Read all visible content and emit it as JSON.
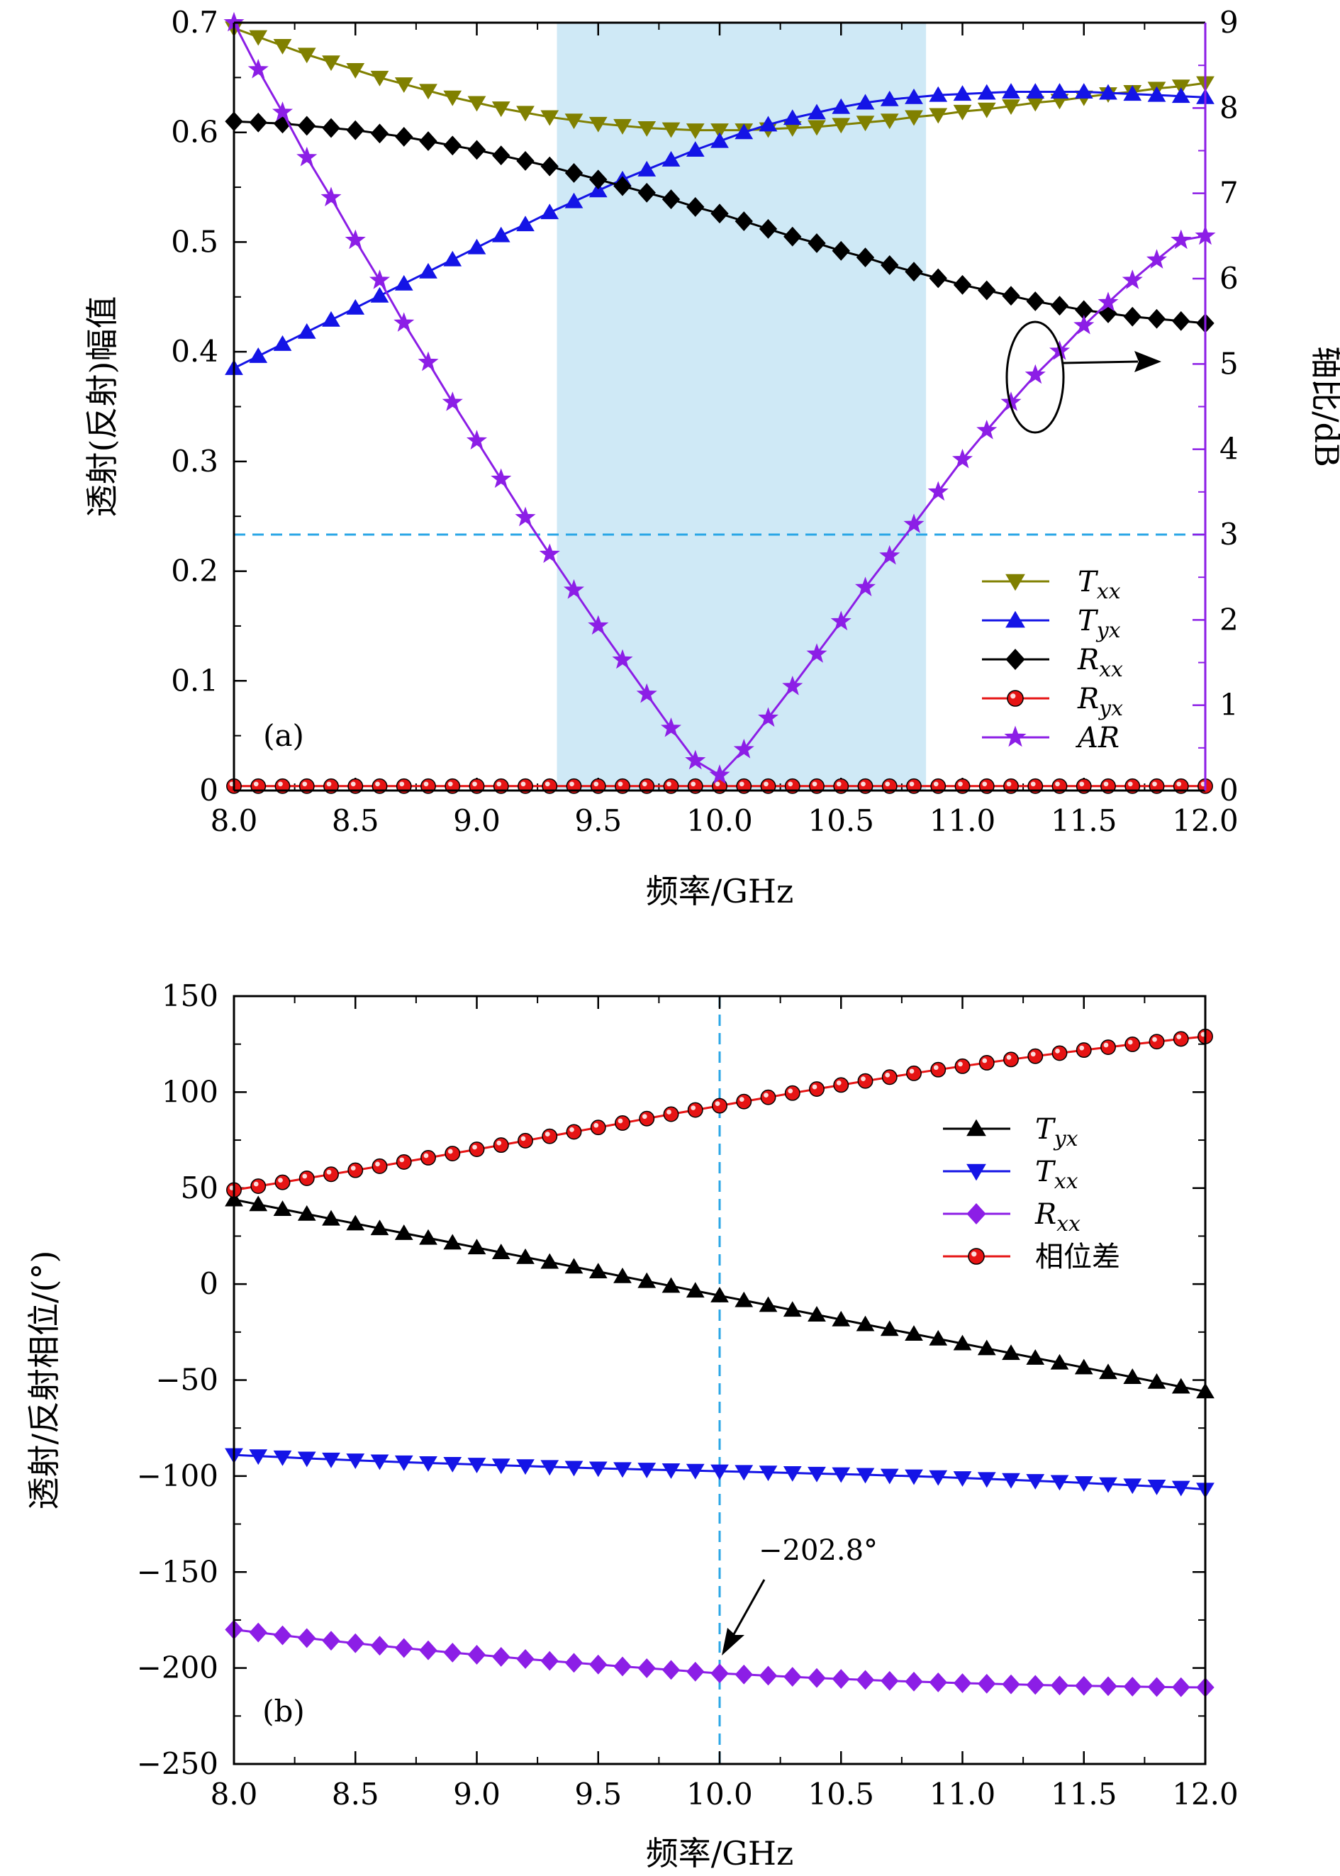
{
  "colors": {
    "olive": "#808000",
    "blue": "#1414e6",
    "black": "#000000",
    "red": "#e61414",
    "purple": "#8c1ee6",
    "band": "#cfe9f6",
    "dash": "#2aa6e6"
  },
  "chart_data": [
    {
      "type": "line",
      "panel_label": "(a)",
      "xlabel": "频率/GHz",
      "ylabel": "透射(反射)幅值",
      "y2label": "轴比/dB",
      "xlim": [
        8.0,
        12.0
      ],
      "ylim": [
        0,
        0.7
      ],
      "y2lim": [
        0,
        9
      ],
      "xticks": [
        "8.0",
        "8.5",
        "9.0",
        "9.5",
        "10.0",
        "10.5",
        "11.0",
        "11.5",
        "12.0"
      ],
      "yticks": [
        "0",
        "0.1",
        "0.2",
        "0.3",
        "0.4",
        "0.5",
        "0.6",
        "0.7"
      ],
      "y2ticks": [
        "0",
        "1",
        "2",
        "3",
        "4",
        "5",
        "6",
        "7",
        "8",
        "9"
      ],
      "shaded_band_x": [
        9.33,
        10.85
      ],
      "ref_line_y2": 3,
      "legend_position": "bottom-right",
      "series": [
        {
          "name": "T",
          "sub": "xx",
          "axis": "left",
          "marker": "tri-down",
          "color": "olive",
          "x": [
            8.0,
            8.1,
            8.2,
            8.3,
            8.4,
            8.5,
            8.6,
            8.7,
            8.8,
            8.9,
            9.0,
            9.1,
            9.2,
            9.3,
            9.4,
            9.5,
            9.6,
            9.7,
            9.8,
            9.9,
            10.0,
            10.1,
            10.2,
            10.3,
            10.4,
            10.5,
            10.6,
            10.7,
            10.8,
            10.9,
            11.0,
            11.1,
            11.2,
            11.3,
            11.4,
            11.5,
            11.6,
            11.7,
            11.8,
            11.9,
            12.0
          ],
          "y": [
            0.695,
            0.687,
            0.679,
            0.671,
            0.664,
            0.657,
            0.65,
            0.644,
            0.638,
            0.632,
            0.627,
            0.622,
            0.618,
            0.614,
            0.611,
            0.608,
            0.606,
            0.604,
            0.603,
            0.602,
            0.602,
            0.602,
            0.603,
            0.604,
            0.605,
            0.607,
            0.609,
            0.611,
            0.614,
            0.616,
            0.619,
            0.621,
            0.624,
            0.627,
            0.629,
            0.632,
            0.635,
            0.637,
            0.64,
            0.642,
            0.645
          ]
        },
        {
          "name": "T",
          "sub": "yx",
          "axis": "left",
          "marker": "tri-up",
          "color": "blue",
          "x": [
            8.0,
            8.1,
            8.2,
            8.3,
            8.4,
            8.5,
            8.6,
            8.7,
            8.8,
            8.9,
            9.0,
            9.1,
            9.2,
            9.3,
            9.4,
            9.5,
            9.6,
            9.7,
            9.8,
            9.9,
            10.0,
            10.1,
            10.2,
            10.3,
            10.4,
            10.5,
            10.6,
            10.7,
            10.8,
            10.9,
            11.0,
            11.1,
            11.2,
            11.3,
            11.4,
            11.5,
            11.6,
            11.7,
            11.8,
            11.9,
            12.0
          ],
          "y": [
            0.385,
            0.396,
            0.407,
            0.418,
            0.429,
            0.44,
            0.451,
            0.462,
            0.473,
            0.484,
            0.495,
            0.506,
            0.516,
            0.527,
            0.537,
            0.547,
            0.557,
            0.566,
            0.575,
            0.584,
            0.592,
            0.6,
            0.607,
            0.613,
            0.618,
            0.623,
            0.627,
            0.63,
            0.632,
            0.634,
            0.635,
            0.636,
            0.637,
            0.637,
            0.637,
            0.637,
            0.636,
            0.635,
            0.634,
            0.633,
            0.632
          ]
        },
        {
          "name": "R",
          "sub": "xx",
          "axis": "left",
          "marker": "diamond",
          "color": "black",
          "x": [
            8.0,
            8.1,
            8.2,
            8.3,
            8.4,
            8.5,
            8.6,
            8.7,
            8.8,
            8.9,
            9.0,
            9.1,
            9.2,
            9.3,
            9.4,
            9.5,
            9.6,
            9.7,
            9.8,
            9.9,
            10.0,
            10.1,
            10.2,
            10.3,
            10.4,
            10.5,
            10.6,
            10.7,
            10.8,
            10.9,
            11.0,
            11.1,
            11.2,
            11.3,
            11.4,
            11.5,
            11.6,
            11.7,
            11.8,
            11.9,
            12.0
          ],
          "y": [
            0.61,
            0.609,
            0.608,
            0.606,
            0.604,
            0.602,
            0.599,
            0.596,
            0.592,
            0.588,
            0.584,
            0.579,
            0.574,
            0.569,
            0.563,
            0.557,
            0.551,
            0.545,
            0.539,
            0.532,
            0.526,
            0.519,
            0.512,
            0.505,
            0.499,
            0.492,
            0.486,
            0.479,
            0.473,
            0.467,
            0.461,
            0.456,
            0.451,
            0.446,
            0.442,
            0.438,
            0.435,
            0.432,
            0.43,
            0.428,
            0.426
          ]
        },
        {
          "name": "R",
          "sub": "yx",
          "axis": "left",
          "marker": "circle",
          "color": "red",
          "x": [
            8.0,
            8.1,
            8.2,
            8.3,
            8.4,
            8.5,
            8.6,
            8.7,
            8.8,
            8.9,
            9.0,
            9.1,
            9.2,
            9.3,
            9.4,
            9.5,
            9.6,
            9.7,
            9.8,
            9.9,
            10.0,
            10.1,
            10.2,
            10.3,
            10.4,
            10.5,
            10.6,
            10.7,
            10.8,
            10.9,
            11.0,
            11.1,
            11.2,
            11.3,
            11.4,
            11.5,
            11.6,
            11.7,
            11.8,
            11.9,
            12.0
          ],
          "y": [
            0.004,
            0.004,
            0.004,
            0.004,
            0.004,
            0.004,
            0.004,
            0.004,
            0.004,
            0.004,
            0.004,
            0.004,
            0.004,
            0.004,
            0.004,
            0.004,
            0.004,
            0.004,
            0.004,
            0.004,
            0.004,
            0.004,
            0.004,
            0.004,
            0.004,
            0.004,
            0.004,
            0.004,
            0.004,
            0.004,
            0.004,
            0.004,
            0.004,
            0.004,
            0.004,
            0.004,
            0.004,
            0.004,
            0.004,
            0.004,
            0.004
          ]
        },
        {
          "name": "AR",
          "sub": "",
          "axis": "right",
          "marker": "star",
          "color": "purple",
          "x": [
            8.0,
            8.1,
            8.2,
            8.3,
            8.4,
            8.5,
            8.6,
            8.7,
            8.8,
            8.9,
            9.0,
            9.1,
            9.2,
            9.3,
            9.4,
            9.5,
            9.6,
            9.7,
            9.8,
            9.9,
            10.0,
            10.1,
            10.2,
            10.3,
            10.4,
            10.5,
            10.6,
            10.7,
            10.8,
            10.9,
            11.0,
            11.1,
            11.2,
            11.3,
            11.4,
            11.5,
            11.6,
            11.7,
            11.8,
            11.9,
            12.0
          ],
          "y": [
            9.0,
            8.45,
            7.95,
            7.42,
            6.95,
            6.45,
            5.98,
            5.48,
            5.02,
            4.55,
            4.1,
            3.65,
            3.2,
            2.77,
            2.35,
            1.93,
            1.53,
            1.13,
            0.73,
            0.35,
            0.18,
            0.48,
            0.85,
            1.22,
            1.6,
            1.98,
            2.38,
            2.75,
            3.12,
            3.5,
            3.88,
            4.22,
            4.55,
            4.87,
            5.15,
            5.45,
            5.72,
            5.98,
            6.22,
            6.45,
            6.5
          ]
        }
      ]
    },
    {
      "type": "line",
      "panel_label": "(b)",
      "xlabel": "频率/GHz",
      "ylabel": "透射/反射相位/(°)",
      "xlim": [
        8.0,
        12.0
      ],
      "ylim": [
        -250,
        150
      ],
      "xticks": [
        "8.0",
        "8.5",
        "9.0",
        "9.5",
        "10.0",
        "10.5",
        "11.0",
        "11.5",
        "12.0"
      ],
      "yticks": [
        "−250",
        "−200",
        "−150",
        "−100",
        "−50",
        "0",
        "50",
        "100",
        "150"
      ],
      "ref_line_x": 10.0,
      "annotation": {
        "text": "−202.8°",
        "x": 10.0,
        "y": -202.8
      },
      "legend_position": "top-right",
      "series": [
        {
          "name": "T",
          "sub": "yx",
          "marker": "tri-up",
          "color": "black",
          "x": [
            8.0,
            8.1,
            8.2,
            8.3,
            8.4,
            8.5,
            8.6,
            8.7,
            8.8,
            8.9,
            9.0,
            9.1,
            9.2,
            9.3,
            9.4,
            9.5,
            9.6,
            9.7,
            9.8,
            9.9,
            10.0,
            10.1,
            10.2,
            10.3,
            10.4,
            10.5,
            10.6,
            10.7,
            10.8,
            10.9,
            11.0,
            11.1,
            11.2,
            11.3,
            11.4,
            11.5,
            11.6,
            11.7,
            11.8,
            11.9,
            12.0
          ],
          "y": [
            44,
            41.5,
            39,
            36.5,
            34,
            31.5,
            29,
            26.5,
            24,
            21.5,
            19,
            16.5,
            14,
            11.5,
            9,
            6.5,
            4,
            1.5,
            -1,
            -3.5,
            -6,
            -8.5,
            -11,
            -13.5,
            -16,
            -18.5,
            -21,
            -23.5,
            -26,
            -28.5,
            -31,
            -33.5,
            -36,
            -38.5,
            -41,
            -43.5,
            -46,
            -48.5,
            -51,
            -53.5,
            -56
          ]
        },
        {
          "name": "T",
          "sub": "xx",
          "marker": "tri-down",
          "color": "blue",
          "x": [
            8.0,
            8.1,
            8.2,
            8.3,
            8.4,
            8.5,
            8.6,
            8.7,
            8.8,
            8.9,
            9.0,
            9.1,
            9.2,
            9.3,
            9.4,
            9.5,
            9.6,
            9.7,
            9.8,
            9.9,
            10.0,
            10.1,
            10.2,
            10.3,
            10.4,
            10.5,
            10.6,
            10.7,
            10.8,
            10.9,
            11.0,
            11.1,
            11.2,
            11.3,
            11.4,
            11.5,
            11.6,
            11.7,
            11.8,
            11.9,
            12.0
          ],
          "y": [
            -89,
            -89.6,
            -90.2,
            -90.8,
            -91.3,
            -91.8,
            -92.3,
            -92.8,
            -93.2,
            -93.6,
            -94,
            -94.4,
            -94.8,
            -95.2,
            -95.6,
            -96,
            -96.3,
            -96.6,
            -96.9,
            -97.2,
            -97.5,
            -97.8,
            -98.1,
            -98.4,
            -98.7,
            -99,
            -99.3,
            -99.7,
            -100.1,
            -100.5,
            -101,
            -101.5,
            -102,
            -102.5,
            -103,
            -103.6,
            -104.2,
            -104.8,
            -105.4,
            -106,
            -107
          ]
        },
        {
          "name": "R",
          "sub": "xx",
          "marker": "diamond",
          "color": "purple",
          "x": [
            8.0,
            8.1,
            8.2,
            8.3,
            8.4,
            8.5,
            8.6,
            8.7,
            8.8,
            8.9,
            9.0,
            9.1,
            9.2,
            9.3,
            9.4,
            9.5,
            9.6,
            9.7,
            9.8,
            9.9,
            10.0,
            10.1,
            10.2,
            10.3,
            10.4,
            10.5,
            10.6,
            10.7,
            10.8,
            10.9,
            11.0,
            11.1,
            11.2,
            11.3,
            11.4,
            11.5,
            11.6,
            11.7,
            11.8,
            11.9,
            12.0
          ],
          "y": [
            -180,
            -181.5,
            -183,
            -184.4,
            -185.8,
            -187.1,
            -188.4,
            -189.6,
            -190.8,
            -192,
            -193.1,
            -194.2,
            -195.3,
            -196.3,
            -197.3,
            -198.2,
            -199.2,
            -200.1,
            -201,
            -201.9,
            -202.8,
            -203.4,
            -204,
            -204.6,
            -205.2,
            -205.7,
            -206.2,
            -206.7,
            -207.1,
            -207.5,
            -207.9,
            -208.2,
            -208.5,
            -208.8,
            -209.1,
            -209.3,
            -209.5,
            -209.7,
            -209.9,
            -210,
            -210.1
          ]
        },
        {
          "name": "相位差",
          "sub": "",
          "marker": "circle",
          "color": "red",
          "x": [
            8.0,
            8.1,
            8.2,
            8.3,
            8.4,
            8.5,
            8.6,
            8.7,
            8.8,
            8.9,
            9.0,
            9.1,
            9.2,
            9.3,
            9.4,
            9.5,
            9.6,
            9.7,
            9.8,
            9.9,
            10.0,
            10.1,
            10.2,
            10.3,
            10.4,
            10.5,
            10.6,
            10.7,
            10.8,
            10.9,
            11.0,
            11.1,
            11.2,
            11.3,
            11.4,
            11.5,
            11.6,
            11.7,
            11.8,
            11.9,
            12.0
          ],
          "y": [
            49,
            51,
            53,
            55.1,
            57.2,
            59.3,
            61.4,
            63.6,
            65.8,
            68,
            70.2,
            72.4,
            74.7,
            77,
            79.3,
            81.6,
            83.9,
            86.2,
            88.5,
            90.7,
            92.9,
            95.1,
            97.3,
            99.5,
            101.6,
            103.7,
            105.8,
            107.8,
            109.8,
            111.7,
            113.5,
            115.3,
            117,
            118.7,
            120.3,
            121.9,
            123.4,
            124.9,
            126.3,
            127.7,
            129
          ]
        }
      ]
    }
  ]
}
